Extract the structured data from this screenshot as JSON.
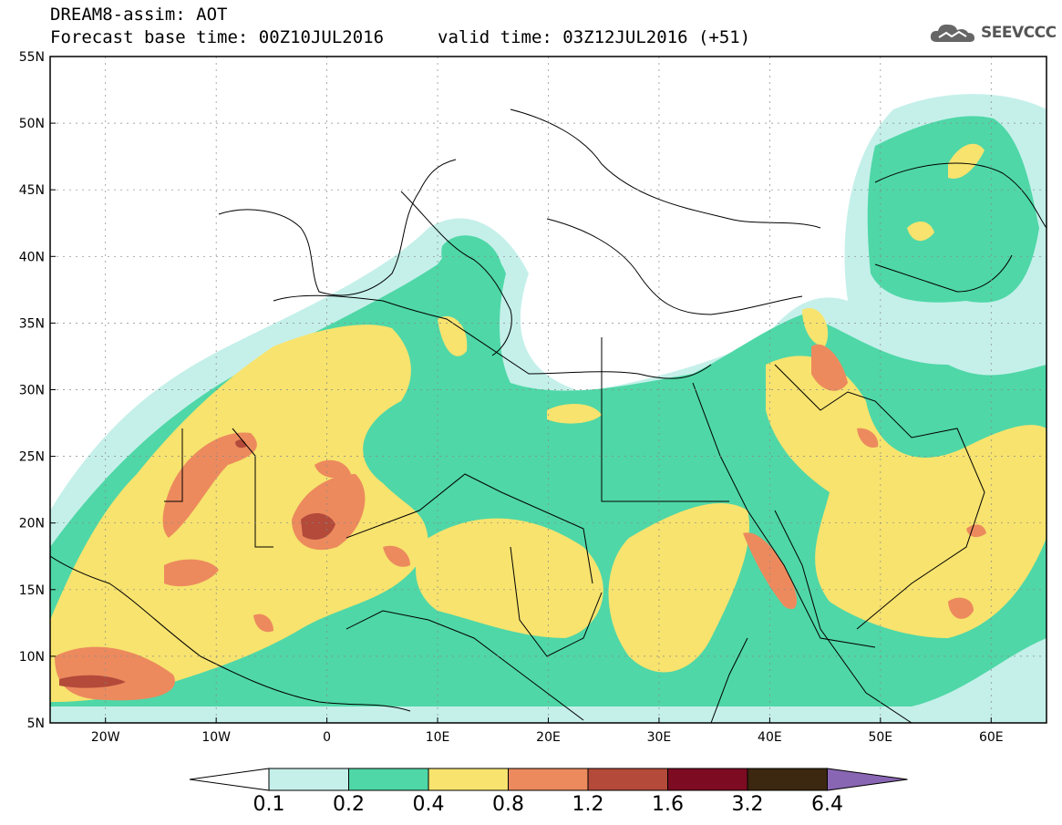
{
  "title": {
    "model": "DREAM8-assim: AOT",
    "base_time": "Forecast base time: 00Z10JUL2016",
    "valid_time": "valid time: 03Z12JUL2016 (+51)"
  },
  "logo": {
    "text": "SEEVCCC",
    "icon": "cloud-icon"
  },
  "map": {
    "lat_labels": [
      "55N",
      "50N",
      "45N",
      "40N",
      "35N",
      "30N",
      "25N",
      "20N",
      "15N",
      "10N",
      "5N"
    ],
    "lon_labels": [
      "20W",
      "10W",
      "0",
      "10E",
      "20E",
      "30E",
      "40E",
      "50E",
      "60E"
    ],
    "lon_range": [
      -25,
      65
    ],
    "lat_range": [
      5,
      55
    ],
    "gridlines": true
  },
  "colorbar": {
    "labels": [
      "0.1",
      "0.2",
      "0.4",
      "0.8",
      "1.2",
      "1.6",
      "3.2",
      "6.4"
    ],
    "colors": [
      "#ffffff",
      "#c5f0ea",
      "#4fd7a7",
      "#f7e36e",
      "#ec8a5e",
      "#b34a3a",
      "#7d0c22",
      "#3c2710",
      "#8966b3"
    ]
  }
}
